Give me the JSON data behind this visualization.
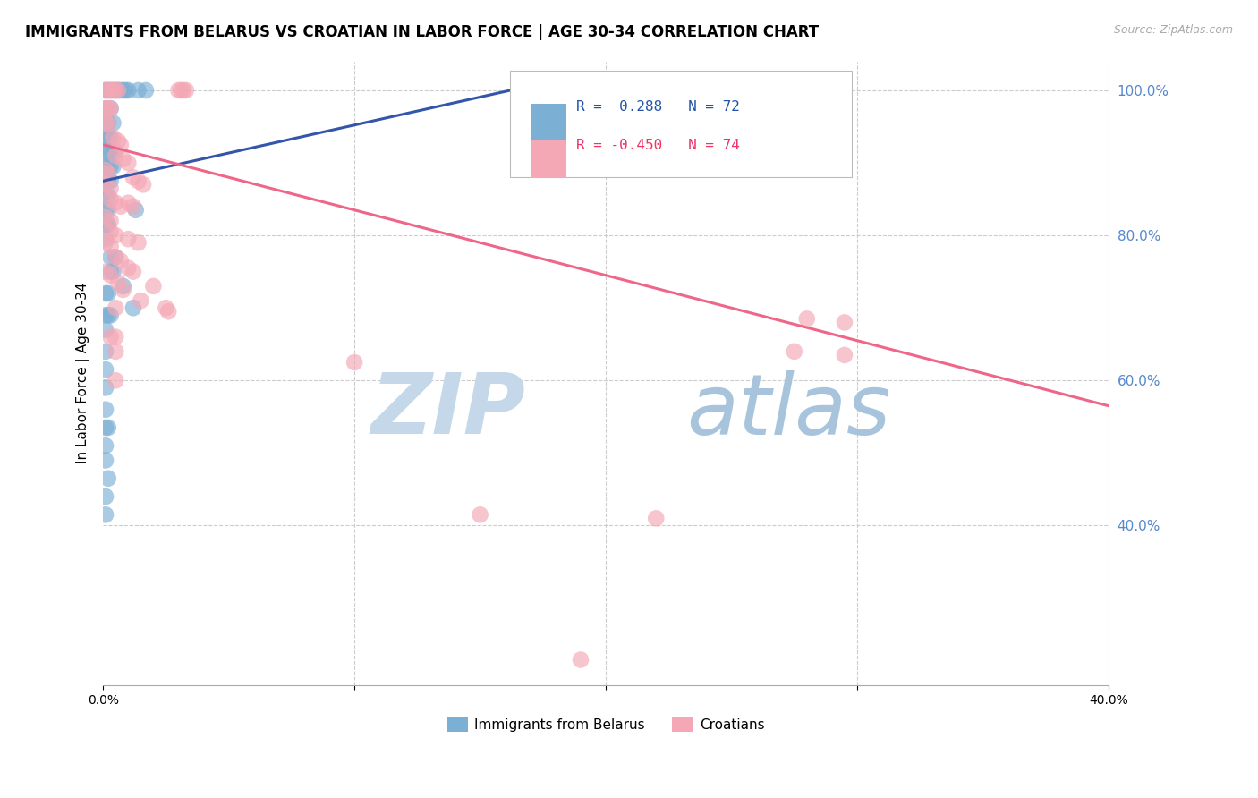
{
  "title": "IMMIGRANTS FROM BELARUS VS CROATIAN IN LABOR FORCE | AGE 30-34 CORRELATION CHART",
  "source": "Source: ZipAtlas.com",
  "ylabel": "In Labor Force | Age 30-34",
  "yaxis_labels": [
    "100.0%",
    "80.0%",
    "60.0%",
    "40.0%"
  ],
  "yaxis_values": [
    1.0,
    0.8,
    0.6,
    0.4
  ],
  "legend_label_blue": "Immigrants from Belarus",
  "legend_label_pink": "Croatians",
  "xlim": [
    0.0,
    0.4
  ],
  "ylim": [
    0.18,
    1.04
  ],
  "background_color": "#FFFFFF",
  "grid_color": "#CCCCCC",
  "blue_color": "#7BAFD4",
  "pink_color": "#F4A7B5",
  "blue_line_color": "#3355AA",
  "pink_line_color": "#EE6688",
  "watermark_zip": "ZIP",
  "watermark_atlas": "atlas",
  "blue_dots": [
    [
      0.001,
      1.0
    ],
    [
      0.002,
      1.0
    ],
    [
      0.003,
      1.0
    ],
    [
      0.004,
      1.0
    ],
    [
      0.005,
      1.0
    ],
    [
      0.006,
      1.0
    ],
    [
      0.007,
      1.0
    ],
    [
      0.008,
      1.0
    ],
    [
      0.009,
      1.0
    ],
    [
      0.01,
      1.0
    ],
    [
      0.014,
      1.0
    ],
    [
      0.017,
      1.0
    ],
    [
      0.001,
      0.975
    ],
    [
      0.003,
      0.975
    ],
    [
      0.001,
      0.955
    ],
    [
      0.002,
      0.955
    ],
    [
      0.004,
      0.955
    ],
    [
      0.001,
      0.935
    ],
    [
      0.002,
      0.935
    ],
    [
      0.003,
      0.935
    ],
    [
      0.001,
      0.915
    ],
    [
      0.002,
      0.915
    ],
    [
      0.003,
      0.915
    ],
    [
      0.005,
      0.915
    ],
    [
      0.001,
      0.895
    ],
    [
      0.002,
      0.895
    ],
    [
      0.003,
      0.895
    ],
    [
      0.004,
      0.895
    ],
    [
      0.001,
      0.875
    ],
    [
      0.002,
      0.875
    ],
    [
      0.003,
      0.875
    ],
    [
      0.001,
      0.855
    ],
    [
      0.002,
      0.855
    ],
    [
      0.001,
      0.835
    ],
    [
      0.002,
      0.835
    ],
    [
      0.001,
      0.815
    ],
    [
      0.002,
      0.815
    ],
    [
      0.001,
      0.795
    ],
    [
      0.013,
      0.835
    ],
    [
      0.003,
      0.77
    ],
    [
      0.005,
      0.77
    ],
    [
      0.003,
      0.75
    ],
    [
      0.004,
      0.75
    ],
    [
      0.001,
      0.72
    ],
    [
      0.002,
      0.72
    ],
    [
      0.001,
      0.69
    ],
    [
      0.002,
      0.69
    ],
    [
      0.003,
      0.69
    ],
    [
      0.001,
      0.67
    ],
    [
      0.001,
      0.64
    ],
    [
      0.008,
      0.73
    ],
    [
      0.001,
      0.615
    ],
    [
      0.012,
      0.7
    ],
    [
      0.001,
      0.59
    ],
    [
      0.001,
      0.56
    ],
    [
      0.001,
      0.535
    ],
    [
      0.002,
      0.535
    ],
    [
      0.001,
      0.51
    ],
    [
      0.001,
      0.49
    ],
    [
      0.002,
      0.465
    ],
    [
      0.001,
      0.44
    ],
    [
      0.001,
      0.415
    ]
  ],
  "pink_dots": [
    [
      0.001,
      1.0
    ],
    [
      0.002,
      1.0
    ],
    [
      0.003,
      1.0
    ],
    [
      0.004,
      1.0
    ],
    [
      0.005,
      1.0
    ],
    [
      0.006,
      1.0
    ],
    [
      0.03,
      1.0
    ],
    [
      0.031,
      1.0
    ],
    [
      0.032,
      1.0
    ],
    [
      0.033,
      1.0
    ],
    [
      0.001,
      0.975
    ],
    [
      0.002,
      0.975
    ],
    [
      0.003,
      0.975
    ],
    [
      0.001,
      0.955
    ],
    [
      0.002,
      0.954
    ],
    [
      0.004,
      0.935
    ],
    [
      0.006,
      0.93
    ],
    [
      0.007,
      0.925
    ],
    [
      0.005,
      0.91
    ],
    [
      0.008,
      0.905
    ],
    [
      0.01,
      0.9
    ],
    [
      0.001,
      0.89
    ],
    [
      0.002,
      0.885
    ],
    [
      0.012,
      0.88
    ],
    [
      0.014,
      0.875
    ],
    [
      0.016,
      0.87
    ],
    [
      0.001,
      0.87
    ],
    [
      0.003,
      0.865
    ],
    [
      0.003,
      0.85
    ],
    [
      0.005,
      0.845
    ],
    [
      0.007,
      0.84
    ],
    [
      0.01,
      0.845
    ],
    [
      0.012,
      0.84
    ],
    [
      0.001,
      0.825
    ],
    [
      0.003,
      0.82
    ],
    [
      0.003,
      0.805
    ],
    [
      0.005,
      0.8
    ],
    [
      0.01,
      0.795
    ],
    [
      0.014,
      0.79
    ],
    [
      0.001,
      0.79
    ],
    [
      0.003,
      0.785
    ],
    [
      0.005,
      0.77
    ],
    [
      0.007,
      0.765
    ],
    [
      0.01,
      0.755
    ],
    [
      0.012,
      0.75
    ],
    [
      0.001,
      0.75
    ],
    [
      0.003,
      0.745
    ],
    [
      0.006,
      0.735
    ],
    [
      0.008,
      0.725
    ],
    [
      0.02,
      0.73
    ],
    [
      0.015,
      0.71
    ],
    [
      0.005,
      0.7
    ],
    [
      0.003,
      0.66
    ],
    [
      0.005,
      0.66
    ],
    [
      0.025,
      0.7
    ],
    [
      0.026,
      0.695
    ],
    [
      0.1,
      0.625
    ],
    [
      0.005,
      0.64
    ],
    [
      0.28,
      0.685
    ],
    [
      0.295,
      0.68
    ],
    [
      0.275,
      0.64
    ],
    [
      0.295,
      0.635
    ],
    [
      0.15,
      0.415
    ],
    [
      0.22,
      0.41
    ],
    [
      0.005,
      0.6
    ],
    [
      0.19,
      0.215
    ]
  ],
  "blue_line": {
    "x0": 0.0,
    "y0": 0.875,
    "x1": 0.175,
    "y1": 1.01
  },
  "pink_line": {
    "x0": 0.0,
    "y0": 0.925,
    "x1": 0.4,
    "y1": 0.565
  }
}
